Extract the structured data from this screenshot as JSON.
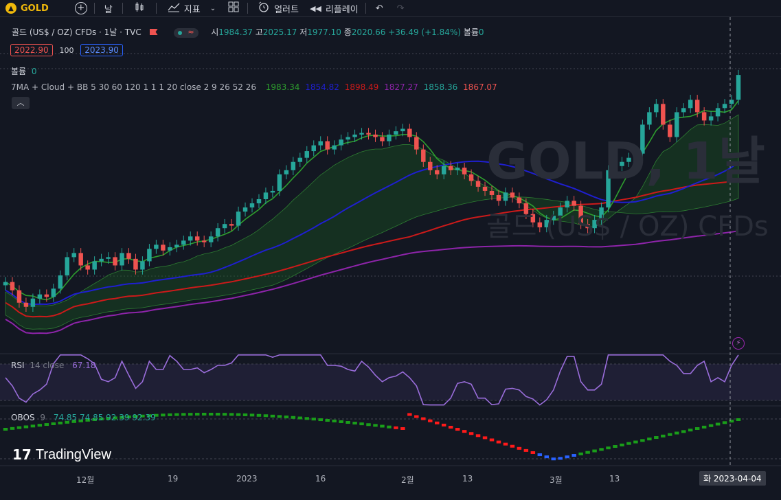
{
  "toolbar": {
    "symbol": "GOLD",
    "interval": "날",
    "indicators_label": "지표",
    "alert_label": "얼러트",
    "replay_label": "리플레이"
  },
  "legend": {
    "title": "골드 (US$ / OZ) CFDs · 1날 · TVC",
    "open_label": "시",
    "open": "1984.37",
    "high_label": "고",
    "high": "2025.17",
    "low_label": "저",
    "low": "1977.10",
    "close_label": "종",
    "close": "2020.66",
    "change": "+36.49 (+1.84%)",
    "volume_label": "볼륨",
    "volume": "0",
    "sell_price": "2022.90",
    "spread": "100",
    "buy_price": "2023.90",
    "vol_row_label": "볼륨",
    "vol_row_value": "0",
    "ma_label": "7MA + Cloud + BB 5 30 60 120 1 1 1 20 close 2 9 26 52 26",
    "ma_values": [
      "1983.34",
      "1854.82",
      "1898.49",
      "1827.27",
      "1858.36",
      "1867.07"
    ]
  },
  "rsi": {
    "label": "RSI",
    "params": "14 close",
    "value": "67.18"
  },
  "obos": {
    "label": "OBOS",
    "params": "9",
    "values": "74.85 74.85 92.39 92.39"
  },
  "x_axis": {
    "labels": [
      "12월",
      "19",
      "2023",
      "16",
      "2월",
      "13",
      "3월",
      "13"
    ]
  },
  "crosshair_date": "화 2023-04-04",
  "watermark": {
    "symbol": "GOLD, 1날",
    "name": "골드 (US$ / OZ) CFDs"
  },
  "branding": "TradingView",
  "colors": {
    "up": "#26a69a",
    "down": "#ef5350",
    "background": "#131722",
    "ma_green": "#2e9e2e",
    "ma_blue": "#1f1fd1",
    "ma_red": "#cc1a1a",
    "ma_purple": "#8e24aa",
    "rsi": "#9a6ddb",
    "accent": "#f0b90b"
  },
  "chart_data": {
    "type": "candlestick",
    "symbol": "GOLD",
    "timeframe": "1D",
    "last_ohlc": {
      "open": 1984.37,
      "high": 2025.17,
      "low": 1977.1,
      "close": 2020.66
    },
    "ma_values": [
      1983.34,
      1854.82,
      1898.49,
      1827.27,
      1858.36,
      1867.07
    ],
    "rsi_value": 67.18,
    "closes": [
      1770,
      1760,
      1745,
      1740,
      1750,
      1755,
      1752,
      1762,
      1778,
      1800,
      1805,
      1790,
      1785,
      1795,
      1798,
      1800,
      1790,
      1805,
      1798,
      1785,
      1795,
      1810,
      1815,
      1808,
      1812,
      1815,
      1820,
      1825,
      1820,
      1818,
      1825,
      1835,
      1840,
      1838,
      1855,
      1860,
      1865,
      1870,
      1878,
      1880,
      1900,
      1905,
      1915,
      1920,
      1928,
      1935,
      1940,
      1930,
      1935,
      1942,
      1945,
      1948,
      1950,
      1948,
      1945,
      1940,
      1948,
      1952,
      1955,
      1945,
      1930,
      1915,
      1905,
      1900,
      1910,
      1905,
      1908,
      1900,
      1892,
      1885,
      1880,
      1875,
      1868,
      1878,
      1872,
      1865,
      1852,
      1842,
      1836,
      1845,
      1850,
      1860,
      1868,
      1862,
      1840,
      1835,
      1845,
      1860,
      1905,
      1910,
      1915,
      1920,
      1925,
      1960,
      1975,
      1985,
      1960,
      1945,
      1975,
      1980,
      1990,
      1975,
      1965,
      1970,
      1980,
      1985,
      1990,
      2020
    ],
    "x_tick_labels": [
      "12월",
      "19",
      "2023",
      "16",
      "2월",
      "13",
      "3월",
      "13"
    ]
  }
}
